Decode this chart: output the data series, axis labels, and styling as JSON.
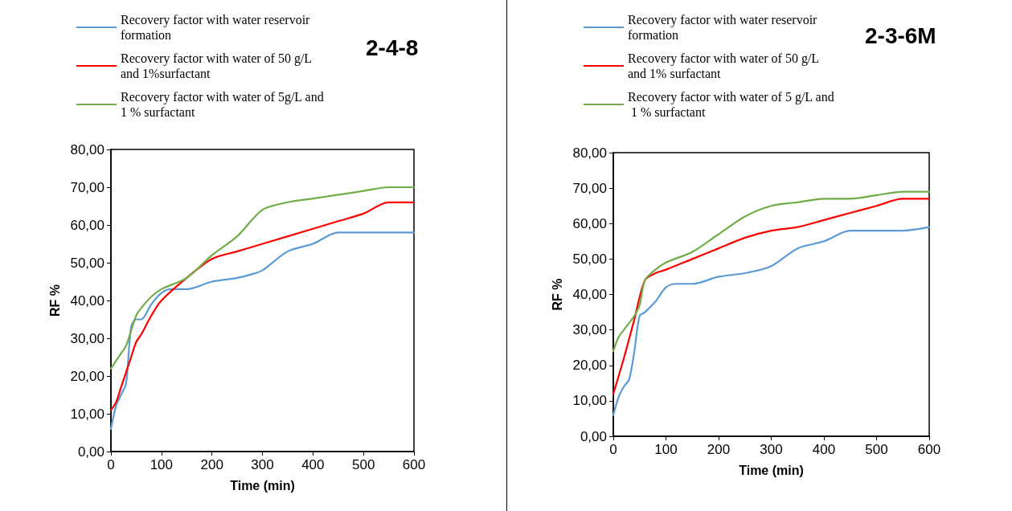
{
  "chart_data": [
    {
      "type": "line",
      "title": "2-4-8",
      "xlabel": "Time (min)",
      "ylabel": "RF %",
      "legend": "top left",
      "grid": false,
      "marker": "none",
      "line_style": "solid",
      "xlim": [
        0,
        600
      ],
      "xticks": [
        0,
        100,
        200,
        300,
        400,
        500,
        600
      ],
      "ylim": [
        0,
        80
      ],
      "yticks": [
        {
          "value": 0,
          "label": "0,00"
        },
        {
          "value": 10,
          "label": "10,00"
        },
        {
          "value": 20,
          "label": "20,00"
        },
        {
          "value": 30,
          "label": "30,00"
        },
        {
          "value": 40,
          "label": "40,00"
        },
        {
          "value": 50,
          "label": "50,00"
        },
        {
          "value": 60,
          "label": "60,00"
        },
        {
          "value": 70,
          "label": "70,00"
        },
        {
          "value": 80,
          "label": "80,00"
        }
      ],
      "series": [
        {
          "name": "Recovery factor with water reservoir formation",
          "color": "#5b9bd5",
          "x": [
            0,
            10,
            20,
            30,
            40,
            50,
            60,
            80,
            100,
            120,
            150,
            200,
            250,
            280,
            300,
            350,
            400,
            450,
            500,
            600
          ],
          "values": [
            6,
            12,
            15,
            18,
            33,
            35,
            35,
            39,
            42,
            43,
            43,
            45,
            46,
            47,
            48,
            53,
            55,
            58,
            58,
            58
          ]
        },
        {
          "name": "Recovery factor with water of 50 g/L and 1%surfactant",
          "color": "#ff0000",
          "x": [
            0,
            10,
            20,
            30,
            40,
            50,
            60,
            80,
            100,
            150,
            200,
            250,
            300,
            400,
            450,
            500,
            550,
            600
          ],
          "values": [
            11,
            13,
            17,
            21,
            25,
            29,
            31,
            36,
            40,
            46,
            51,
            53,
            55,
            59,
            61,
            63,
            66,
            66
          ]
        },
        {
          "name": "Recovery factor with water of 5g/L and 1 % surfactant",
          "color": "#70ad47",
          "x": [
            0,
            10,
            20,
            30,
            50,
            60,
            80,
            100,
            150,
            200,
            250,
            300,
            350,
            400,
            450,
            500,
            550,
            600
          ],
          "values": [
            22,
            24,
            26,
            28,
            36,
            38,
            41,
            43,
            46,
            52,
            57,
            64,
            66,
            67,
            68,
            69,
            70,
            70
          ]
        }
      ]
    },
    {
      "type": "line",
      "title": "2-3-6M",
      "xlabel": "Time (min)",
      "ylabel": "RF %",
      "legend": "top left",
      "grid": false,
      "marker": "none",
      "line_style": "solid",
      "xlim": [
        0,
        600
      ],
      "xticks": [
        0,
        100,
        200,
        300,
        400,
        500,
        600
      ],
      "ylim": [
        0,
        80
      ],
      "yticks": [
        {
          "value": 0,
          "label": "0,00"
        },
        {
          "value": 10,
          "label": "10,00"
        },
        {
          "value": 20,
          "label": "20,00"
        },
        {
          "value": 30,
          "label": "30,00"
        },
        {
          "value": 40,
          "label": "40,00"
        },
        {
          "value": 50,
          "label": "50,00"
        },
        {
          "value": 60,
          "label": "60,00"
        },
        {
          "value": 70,
          "label": "70,00"
        },
        {
          "value": 80,
          "label": "80,00"
        }
      ],
      "series": [
        {
          "name": "Recovery factor with water reservoir formation",
          "color": "#5b9bd5",
          "x": [
            0,
            10,
            20,
            30,
            40,
            50,
            60,
            80,
            100,
            120,
            150,
            200,
            250,
            300,
            350,
            400,
            450,
            500,
            550,
            600
          ],
          "values": [
            6,
            11,
            14,
            16,
            24,
            34,
            35,
            38,
            42,
            43,
            43,
            45,
            46,
            48,
            53,
            55,
            58,
            58,
            58,
            59
          ]
        },
        {
          "name": "Recovery factor with water of 50 g/L and 1% surfactant",
          "color": "#ff0000",
          "x": [
            0,
            20,
            40,
            60,
            80,
            100,
            150,
            200,
            250,
            300,
            350,
            400,
            450,
            500,
            550,
            600
          ],
          "values": [
            12,
            22,
            33,
            44,
            46,
            47,
            50,
            53,
            56,
            58,
            59,
            61,
            63,
            65,
            67,
            67
          ]
        },
        {
          "name": "Recovery factor with water of 5 g/L and 1 % surfactant",
          "color": "#70ad47",
          "x": [
            0,
            10,
            20,
            40,
            50,
            60,
            80,
            100,
            150,
            200,
            250,
            300,
            350,
            400,
            450,
            500,
            550,
            600
          ],
          "values": [
            24,
            28,
            30,
            34,
            37,
            44,
            47,
            49,
            52,
            57,
            62,
            65,
            66,
            67,
            67,
            68,
            69,
            69
          ]
        }
      ]
    }
  ]
}
